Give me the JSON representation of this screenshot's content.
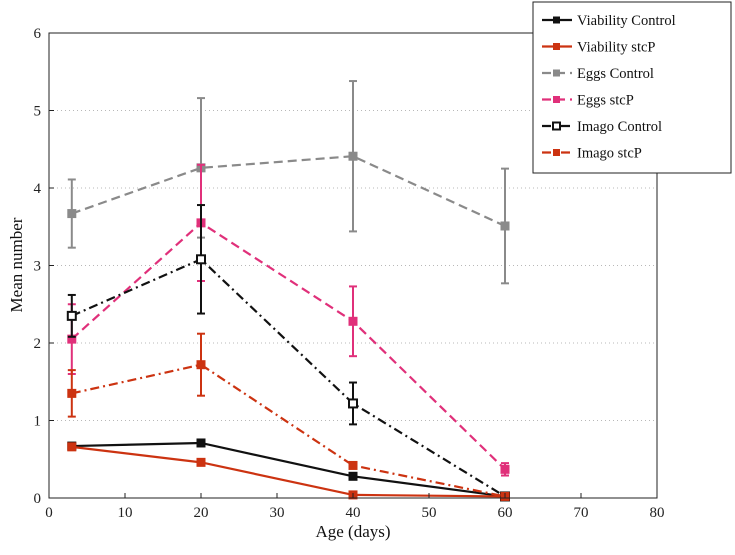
{
  "chart_data": {
    "type": "line",
    "xlabel": "Age (days)",
    "ylabel": "Mean number",
    "xlim": [
      0,
      80
    ],
    "ylim": [
      0,
      6
    ],
    "xticks": [
      0,
      10,
      20,
      30,
      40,
      50,
      60,
      70,
      80
    ],
    "yticks": [
      0,
      1,
      2,
      3,
      4,
      5,
      6
    ],
    "grid": "horizontal dotted",
    "legend_position": "top-right",
    "series": [
      {
        "name": "Viability Control",
        "x": [
          3,
          20,
          40,
          60
        ],
        "values": [
          0.67,
          0.71,
          0.28,
          0.02
        ],
        "err": [
          0.02,
          0.03,
          0.03,
          0.01
        ],
        "color": "#111111",
        "dash": "solid",
        "marker": "square-filled"
      },
      {
        "name": "Viability stcP",
        "x": [
          3,
          20,
          40,
          60
        ],
        "values": [
          0.66,
          0.46,
          0.04,
          0.02
        ],
        "err": [
          0.02,
          0.02,
          0.01,
          0.01
        ],
        "color": "#cc3311",
        "dash": "solid",
        "marker": "square-filled"
      },
      {
        "name": "Eggs Control",
        "x": [
          3,
          20,
          40,
          60
        ],
        "values": [
          3.67,
          4.26,
          4.41,
          3.51
        ],
        "err": [
          0.44,
          0.9,
          0.97,
          0.74
        ],
        "color": "#8a8a8a",
        "dash": "dashed",
        "marker": "square-filled"
      },
      {
        "name": "Eggs stcP",
        "x": [
          3,
          20,
          40,
          60
        ],
        "values": [
          2.05,
          3.55,
          2.28,
          0.37
        ],
        "err": [
          0.45,
          0.75,
          0.45,
          0.08
        ],
        "color": "#e0307a",
        "dash": "dashed",
        "marker": "square-filled"
      },
      {
        "name": "Imago Control",
        "x": [
          3,
          20,
          40,
          60
        ],
        "values": [
          2.35,
          3.08,
          1.22,
          0.02
        ],
        "err": [
          0.27,
          0.7,
          0.27,
          0.02
        ],
        "color": "#111111",
        "dash": "dashdot",
        "marker": "square-open"
      },
      {
        "name": "Imago stcP",
        "x": [
          3,
          20,
          40,
          60
        ],
        "values": [
          1.35,
          1.72,
          0.42,
          0.02
        ],
        "err": [
          0.3,
          0.4,
          0.03,
          0.01
        ],
        "color": "#cc3311",
        "dash": "dashdot",
        "marker": "square-filled"
      }
    ]
  }
}
